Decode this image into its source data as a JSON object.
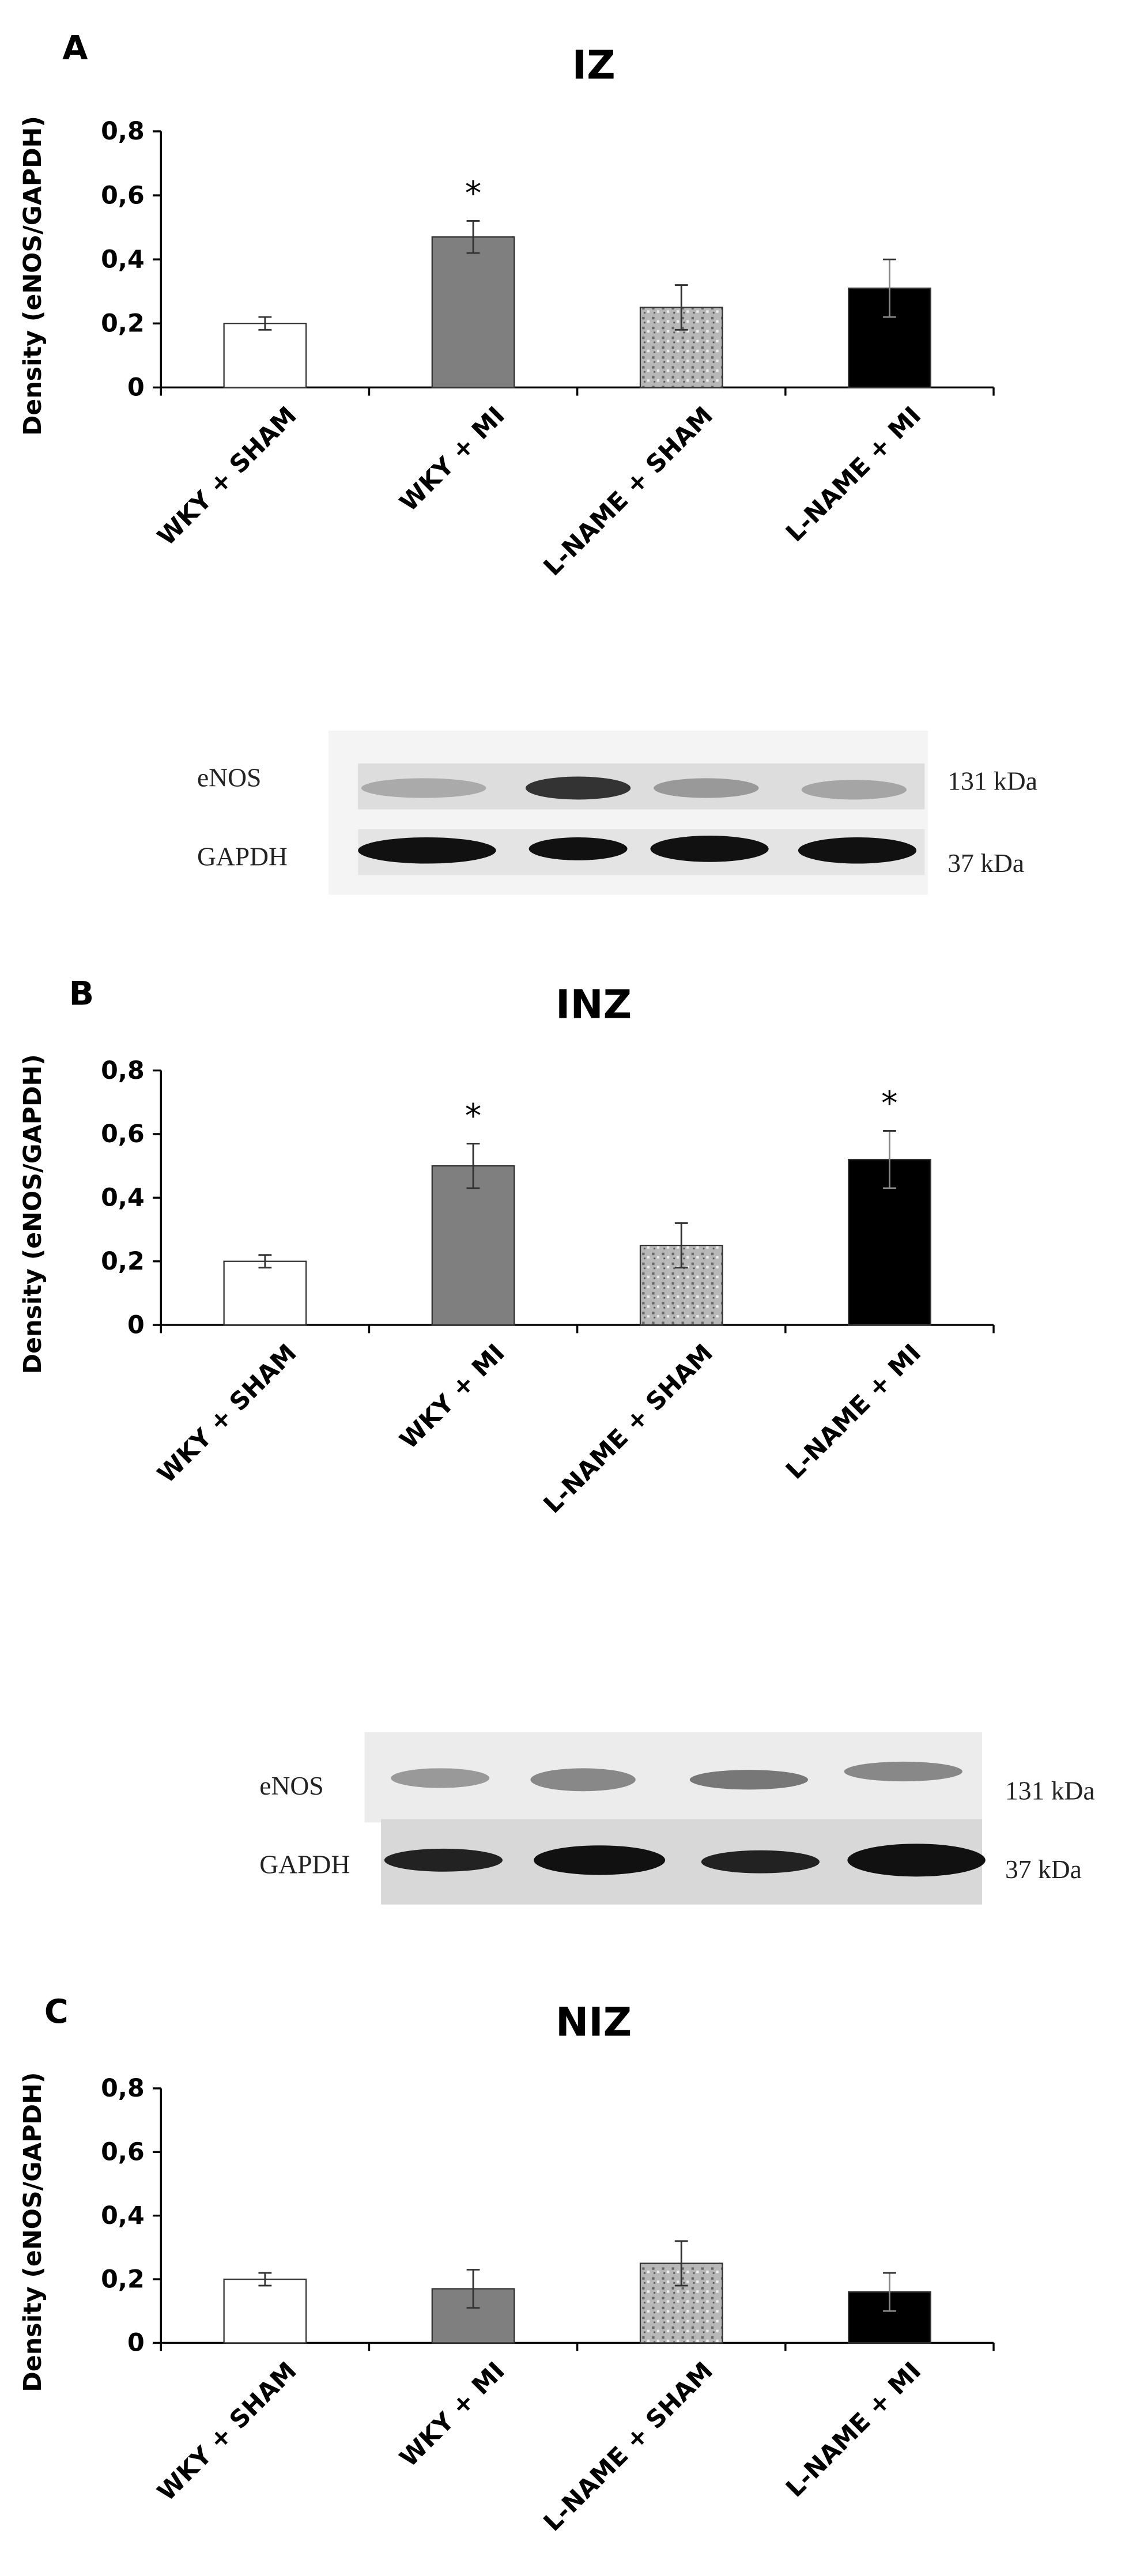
{
  "chart_data": [
    {
      "type": "bar",
      "panel_label": "A",
      "title": "IZ",
      "y_label": "Density (eNOS/GAPDH)",
      "categories": [
        "WKY + SHAM",
        "WKY + MI",
        "L-NAME + SHAM",
        "L-NAME + MI"
      ],
      "values": [
        0.2,
        0.47,
        0.25,
        0.31
      ],
      "errors": [
        0.02,
        0.05,
        0.07,
        0.09
      ],
      "significance": [
        null,
        "*",
        null,
        null
      ],
      "colors": [
        "#ffffff",
        "#7f7f7f",
        "#b8b8b8",
        "#000000"
      ],
      "ylim": [
        0,
        0.8
      ],
      "yticks": [
        0,
        {
          "value": 0.2,
          "label": "0,2"
        },
        {
          "value": 0.4,
          "label": "0,4"
        },
        {
          "value": 0.6,
          "label": "0,6"
        },
        {
          "value": 0.8,
          "label": "0,8"
        }
      ]
    },
    {
      "type": "bar",
      "panel_label": "B",
      "title": "INZ",
      "y_label": "Density (eNOS/GAPDH)",
      "categories": [
        "WKY + SHAM",
        "WKY + MI",
        "L-NAME + SHAM",
        "L-NAME + MI"
      ],
      "values": [
        0.2,
        0.5,
        0.25,
        0.52
      ],
      "errors": [
        0.02,
        0.07,
        0.07,
        0.09
      ],
      "significance": [
        null,
        "*",
        null,
        "*"
      ],
      "colors": [
        "#ffffff",
        "#7f7f7f",
        "#b8b8b8",
        "#000000"
      ],
      "ylim": [
        0,
        0.8
      ],
      "yticks": [
        0,
        {
          "value": 0.2,
          "label": "0,2"
        },
        {
          "value": 0.4,
          "label": "0,4"
        },
        {
          "value": 0.6,
          "label": "0,6"
        },
        {
          "value": 0.8,
          "label": "0,8"
        }
      ]
    },
    {
      "type": "bar",
      "panel_label": "C",
      "title": "NIZ",
      "y_label": "Density (eNOS/GAPDH)",
      "categories": [
        "WKY + SHAM",
        "WKY + MI",
        "L-NAME + SHAM",
        "L-NAME + MI"
      ],
      "values": [
        0.2,
        0.17,
        0.25,
        0.16
      ],
      "errors": [
        0.02,
        0.06,
        0.07,
        0.06
      ],
      "significance": [
        null,
        null,
        null,
        null
      ],
      "colors": [
        "#ffffff",
        "#7f7f7f",
        "#b8b8b8",
        "#000000"
      ],
      "ylim": [
        0,
        0.8
      ],
      "yticks": [
        0,
        {
          "value": 0.2,
          "label": "0,2"
        },
        {
          "value": 0.4,
          "label": "0,4"
        },
        {
          "value": 0.6,
          "label": "0,6"
        },
        {
          "value": 0.8,
          "label": "0,8"
        }
      ]
    }
  ],
  "blots": [
    {
      "rows": [
        {
          "label": "eNOS",
          "size": "131 kDa"
        },
        {
          "label": "GAPDH",
          "size": "37 kDa"
        }
      ]
    },
    {
      "rows": [
        {
          "label": "eNOS",
          "size": "131 kDa"
        },
        {
          "label": "GAPDH",
          "size": "37 kDa"
        }
      ]
    }
  ]
}
